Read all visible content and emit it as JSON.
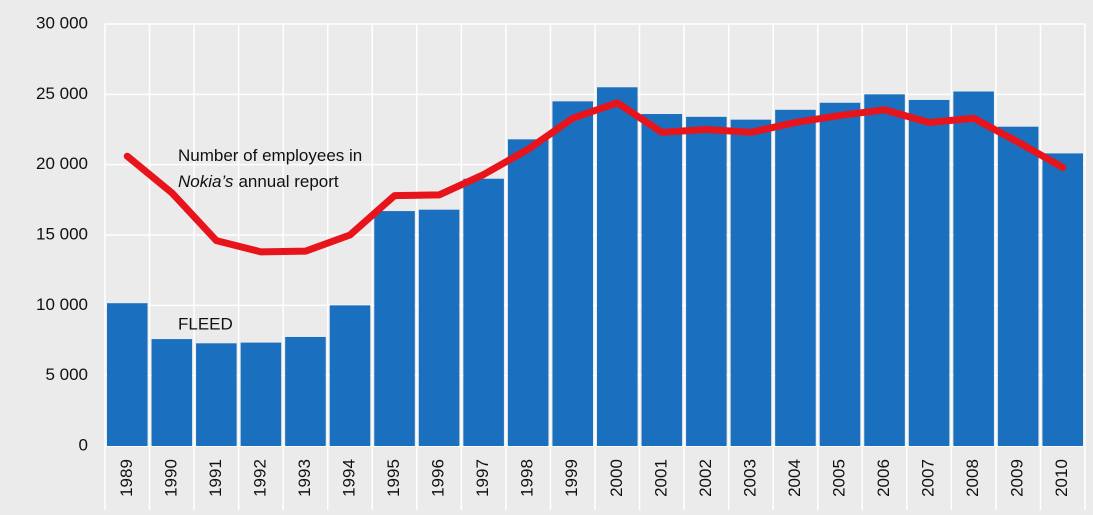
{
  "chart_data": {
    "type": "bar_line",
    "categories": [
      "1989",
      "1990",
      "1991",
      "1992",
      "1993",
      "1994",
      "1995",
      "1996",
      "1997",
      "1998",
      "1999",
      "2000",
      "2001",
      "2002",
      "2003",
      "2004",
      "2005",
      "2006",
      "2007",
      "2008",
      "2009",
      "2010"
    ],
    "series": [
      {
        "name": "FLEED",
        "type": "bar",
        "color": "#1a6fbe",
        "values": [
          10150,
          7600,
          7300,
          7350,
          7750,
          10000,
          16700,
          16800,
          19000,
          21800,
          24500,
          25500,
          23600,
          23400,
          23200,
          23900,
          24400,
          25000,
          24600,
          25200,
          22700,
          20800
        ]
      },
      {
        "name": [
          "Number of employees in",
          "Nokia’s",
          "annual report"
        ],
        "type": "line",
        "color": "#e8141c",
        "values": [
          20600,
          18000,
          14600,
          13800,
          13850,
          15000,
          17800,
          17850,
          19300,
          21100,
          23300,
          24400,
          22300,
          22500,
          22300,
          23000,
          23500,
          23900,
          23000,
          23300,
          21600,
          19800
        ]
      }
    ],
    "ylim": [
      0,
      30000
    ],
    "yticks": [
      0,
      {
        "value": 5000,
        "label": "5 000"
      },
      {
        "value": 10000,
        "label": "10 000"
      },
      {
        "value": 15000,
        "label": "15 000"
      },
      {
        "value": 20000,
        "label": "20 000"
      },
      {
        "value": 25000,
        "label": "25 000"
      },
      {
        "value": 30000,
        "label": "30 000"
      }
    ],
    "grid": true,
    "background": "#ebebeb"
  }
}
